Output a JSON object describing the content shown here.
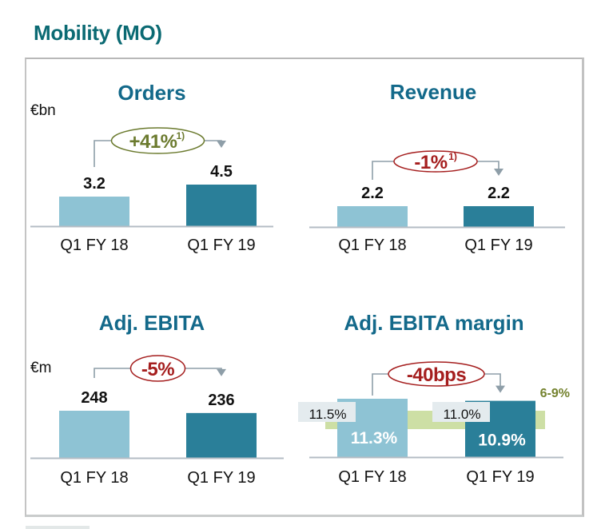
{
  "page_title": "Mobility (MO)",
  "colors": {
    "title": "#0b6a73",
    "panel_title": "#13698a",
    "bar_prior": "#8ec3d4",
    "bar_current": "#2a7f99",
    "axis": "#b4bcc4",
    "connector": "#8e9ea8",
    "positive": "#6b7a2e",
    "negative": "#a51e1e",
    "target_band": "#cddfa5",
    "target_label": "#74822e",
    "prior_label_bg": "#e4ebee"
  },
  "chart_data": [
    {
      "type": "bar",
      "title": "Orders",
      "unit_label": "€bn",
      "categories": [
        "Q1 FY 18",
        "Q1 FY 19"
      ],
      "values": [
        3.2,
        4.5
      ],
      "value_labels": [
        "3.2",
        "4.5"
      ],
      "change": {
        "text": "+41%",
        "footnote": "1)",
        "sentiment": "positive"
      },
      "ylim": [
        0,
        4.5
      ]
    },
    {
      "type": "bar",
      "title": "Revenue",
      "unit_label": "",
      "categories": [
        "Q1 FY 18",
        "Q1 FY 19"
      ],
      "values": [
        2.2,
        2.2
      ],
      "value_labels": [
        "2.2",
        "2.2"
      ],
      "change": {
        "text": "-1%",
        "footnote": "1)",
        "sentiment": "negative"
      },
      "ylim": [
        0,
        6.9
      ]
    },
    {
      "type": "bar",
      "title": "Adj. EBITA",
      "unit_label": "€m",
      "categories": [
        "Q1 FY 18",
        "Q1 FY 19"
      ],
      "values": [
        248,
        236
      ],
      "value_labels": [
        "248",
        "236"
      ],
      "change": {
        "text": "-5%",
        "footnote": "",
        "sentiment": "negative"
      },
      "ylim": [
        0,
        248
      ]
    },
    {
      "type": "bar",
      "title": "Adj. EBITA margin",
      "unit_label": "",
      "categories": [
        "Q1 FY 18",
        "Q1 FY 19"
      ],
      "values": [
        11.3,
        10.9
      ],
      "value_labels": [
        "11.3%",
        "10.9%"
      ],
      "reported_labels": [
        "11.5%",
        "11.0%"
      ],
      "change": {
        "text": "-40bps",
        "footnote": "",
        "sentiment": "negative"
      },
      "target_range": {
        "label": "6-9%",
        "min": 6,
        "max": 9
      },
      "ylim": [
        0,
        14.5
      ]
    }
  ]
}
